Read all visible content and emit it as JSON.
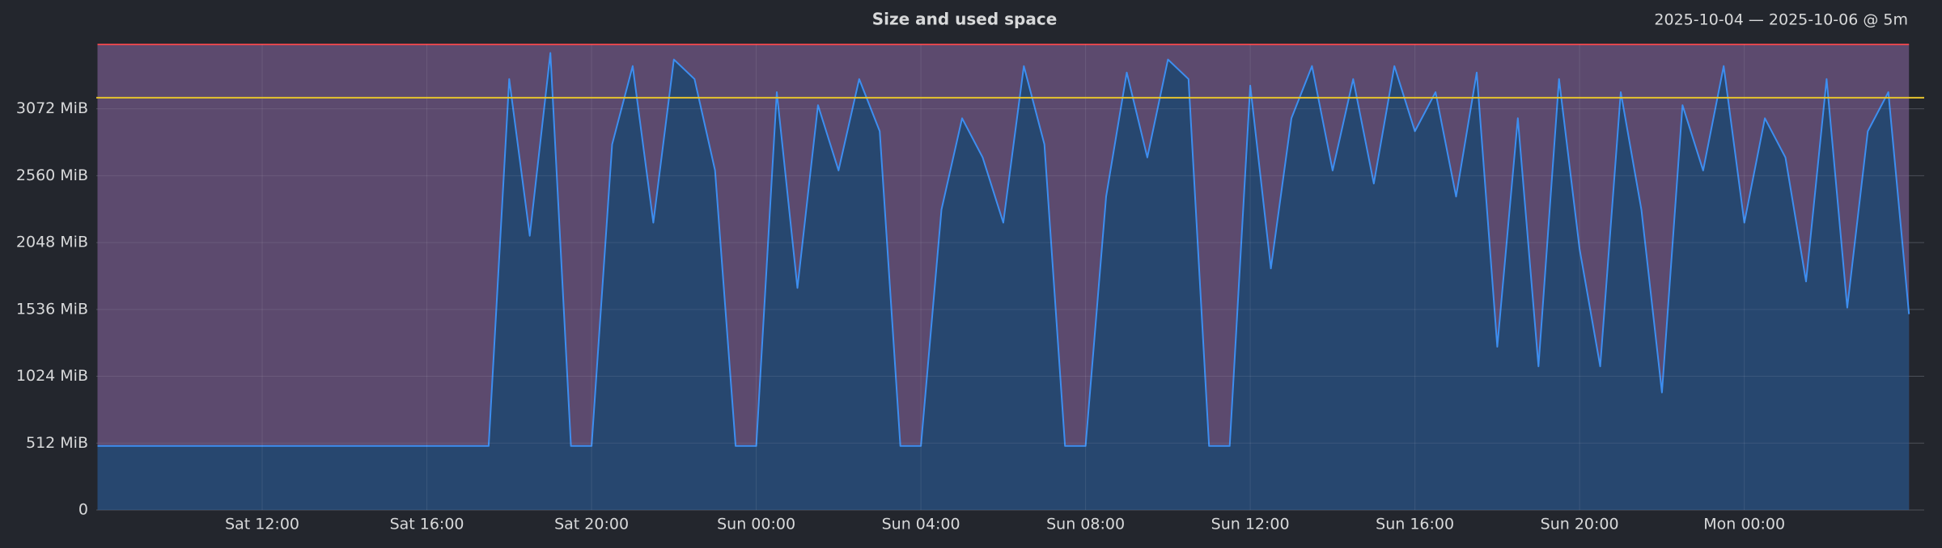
{
  "chart_data": {
    "type": "area",
    "title": "Size and used space",
    "subtitle": "2025-10-04 — 2025-10-06 @ 5m",
    "x": [
      8,
      8.5,
      9,
      9.5,
      10,
      10.5,
      11,
      11.5,
      12,
      12.5,
      13,
      13.5,
      14,
      14.5,
      15,
      15.5,
      16,
      16.5,
      17,
      17.5,
      18,
      18.5,
      19,
      19.5,
      20,
      20.5,
      21,
      21.5,
      22,
      22.5,
      23,
      23.5,
      24,
      24.5,
      25,
      25.5,
      26,
      26.5,
      27,
      27.5,
      28,
      28.5,
      29,
      29.5,
      30,
      30.5,
      31,
      31.5,
      32,
      32.5,
      33,
      33.5,
      34,
      34.5,
      35,
      35.5,
      36,
      36.5,
      37,
      37.5,
      38,
      38.5,
      39,
      39.5,
      40,
      40.5,
      41,
      41.5,
      42,
      42.5,
      43,
      43.5,
      44,
      44.5,
      45,
      45.5,
      46,
      46.5,
      47,
      47.5,
      48,
      48.5,
      49,
      49.5,
      50,
      50.5,
      51,
      51.5,
      52
    ],
    "series": [
      {
        "color": "#e0464e",
        "fill": "#5c4a6e",
        "values": [
          3565,
          3565,
          3565,
          3565,
          3565,
          3565,
          3565,
          3565,
          3565,
          3565,
          3565,
          3565,
          3565,
          3565,
          3565,
          3565,
          3565,
          3565,
          3565,
          3565,
          3565,
          3565,
          3565,
          3565,
          3565,
          3565,
          3565,
          3565,
          3565,
          3565,
          3565,
          3565,
          3565,
          3565,
          3565,
          3565,
          3565,
          3565,
          3565,
          3565,
          3565,
          3565,
          3565,
          3565,
          3565,
          3565,
          3565,
          3565,
          3565,
          3565,
          3565,
          3565,
          3565,
          3565,
          3565,
          3565,
          3565,
          3565,
          3565,
          3565,
          3565,
          3565,
          3565,
          3565,
          3565,
          3565,
          3565,
          3565,
          3565,
          3565,
          3565,
          3565,
          3565,
          3565,
          3565,
          3565,
          3565,
          3565,
          3565,
          3565,
          3565,
          3565,
          3565,
          3565,
          3565,
          3565,
          3565,
          3565,
          3565
        ]
      },
      {
        "color": "#3d8ef0",
        "fill": "#27476f",
        "values": [
          490,
          490,
          490,
          490,
          490,
          490,
          490,
          490,
          490,
          490,
          490,
          490,
          490,
          490,
          490,
          490,
          490,
          490,
          490,
          490,
          3300,
          2100,
          3500,
          490,
          490,
          2800,
          3400,
          2200,
          3450,
          3300,
          2600,
          490,
          490,
          3200,
          1700,
          3100,
          2600,
          3300,
          2900,
          490,
          490,
          2300,
          3000,
          2700,
          2200,
          3400,
          2800,
          490,
          490,
          2400,
          3350,
          2700,
          3450,
          3300,
          490,
          490,
          3250,
          1850,
          3000,
          3400,
          2600,
          3300,
          2500,
          3400,
          2900,
          3200,
          2400,
          3350,
          1250,
          3000,
          1100,
          3300,
          2000,
          1100,
          3200,
          2300,
          900,
          3100,
          2600,
          3400,
          2200,
          3000,
          2700,
          1750,
          3300,
          1550,
          2900,
          3200,
          1500
        ]
      }
    ],
    "threshold": {
      "value": 3157,
      "color": "#e5c32e"
    },
    "xlim": [
      7.97,
      52.37
    ],
    "xticks": [
      {
        "value": 12,
        "label": "Sat 12:00"
      },
      {
        "value": 16,
        "label": "Sat 16:00"
      },
      {
        "value": 20,
        "label": "Sat 20:00"
      },
      {
        "value": 24,
        "label": "Sun 00:00"
      },
      {
        "value": 28,
        "label": "Sun 04:00"
      },
      {
        "value": 32,
        "label": "Sun 08:00"
      },
      {
        "value": 36,
        "label": "Sun 12:00"
      },
      {
        "value": 40,
        "label": "Sun 16:00"
      },
      {
        "value": 44,
        "label": "Sun 20:00"
      },
      {
        "value": 48,
        "label": "Mon 00:00"
      }
    ],
    "ylim": [
      0,
      3565
    ],
    "yticks": [
      0,
      {
        "value": 512,
        "label": "512 MiB"
      },
      {
        "value": 1024,
        "label": "1024 MiB"
      },
      {
        "value": 1536,
        "label": "1536 MiB"
      },
      {
        "value": 2048,
        "label": "2048 MiB"
      },
      {
        "value": 2560,
        "label": "2560 MiB"
      },
      {
        "value": 3072,
        "label": "3072 MiB"
      }
    ],
    "grid": true
  }
}
